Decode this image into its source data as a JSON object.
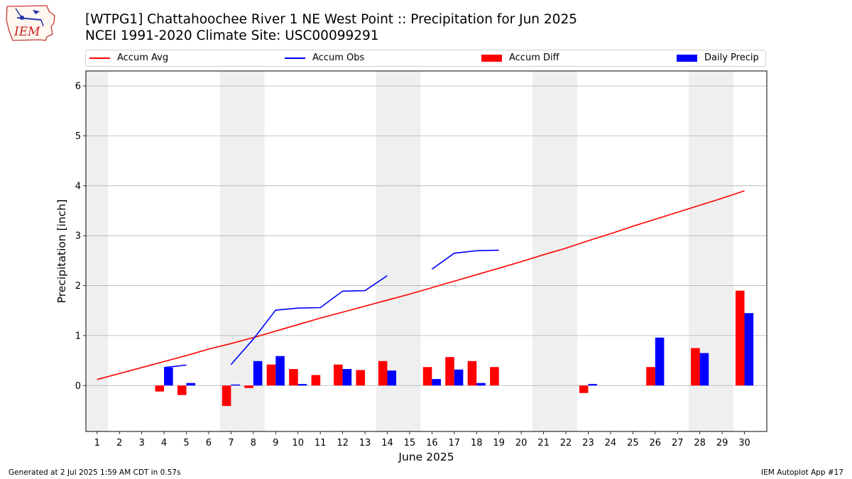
{
  "logo": {
    "text": "IEM",
    "icon": "iem-iowa-logo-icon"
  },
  "title": "[WTPG1] Chattahoochee River 1 NE West Point :: Precipitation for Jun 2025",
  "subtitle": "NCEI 1991-2020 Climate Site: USC00099291",
  "footer": {
    "left": "Generated at 2 Jul 2025 1:59 AM CDT in 0.57s",
    "right": "IEM Autoplot App #17"
  },
  "colors": {
    "accum_avg": "#ff0000",
    "accum_obs": "#0000ff",
    "accum_diff": "#ff0000",
    "daily_precip": "#0000ff",
    "weekend_band": "#efefef",
    "grid": "#b0b0b0"
  },
  "chart_data": {
    "type": "bar",
    "xlabel": "June 2025",
    "ylabel": "Precipitation [inch]",
    "xlim": [
      0.5,
      31.0
    ],
    "ylim": [
      -0.92,
      6.3
    ],
    "yticks": [
      0,
      1,
      2,
      3,
      4,
      5,
      6
    ],
    "days": [
      1,
      2,
      3,
      4,
      5,
      6,
      7,
      8,
      9,
      10,
      11,
      12,
      13,
      14,
      15,
      16,
      17,
      18,
      19,
      20,
      21,
      22,
      23,
      24,
      25,
      26,
      27,
      28,
      29,
      30
    ],
    "weekend_days": [
      1,
      7,
      8,
      14,
      15,
      21,
      22,
      28,
      29
    ],
    "grid": "y",
    "legend_position": "top",
    "legend": [
      "Accum Avg",
      "Accum Obs",
      "Accum Diff",
      "Daily Precip"
    ],
    "series": [
      {
        "name": "Accum Avg",
        "kind": "line",
        "color": "#ff0000",
        "values": [
          0.12,
          0.24,
          0.36,
          0.48,
          0.6,
          0.73,
          0.84,
          0.96,
          1.09,
          1.22,
          1.35,
          1.47,
          1.59,
          1.71,
          1.83,
          1.96,
          2.09,
          2.22,
          2.35,
          2.48,
          2.62,
          2.75,
          2.9,
          3.04,
          3.19,
          3.33,
          3.47,
          3.61,
          3.75,
          3.9
        ]
      },
      {
        "name": "Accum Obs",
        "kind": "line",
        "color": "#0000ff",
        "values": [
          null,
          null,
          null,
          0.36,
          0.41,
          null,
          0.42,
          0.93,
          1.51,
          1.55,
          1.56,
          1.89,
          1.9,
          2.2,
          null,
          2.33,
          2.65,
          2.7,
          2.71,
          null,
          null,
          null,
          null,
          null,
          null,
          null,
          null,
          null,
          null,
          null
        ]
      },
      {
        "name": "Accum Diff",
        "kind": "bar",
        "color": "#ff0000",
        "values": [
          null,
          null,
          null,
          -0.12,
          -0.19,
          null,
          -0.41,
          -0.05,
          0.42,
          0.33,
          0.21,
          0.42,
          0.31,
          0.49,
          null,
          0.37,
          0.57,
          0.49,
          0.37,
          null,
          null,
          null,
          -0.15,
          null,
          null,
          0.37,
          null,
          0.75,
          null,
          1.9
        ]
      },
      {
        "name": "Daily Precip",
        "kind": "bar",
        "color": "#0000ff",
        "values": [
          null,
          null,
          null,
          0.36,
          0.05,
          null,
          0.02,
          0.49,
          0.59,
          0.03,
          null,
          0.33,
          null,
          0.3,
          null,
          0.13,
          0.32,
          0.05,
          null,
          null,
          null,
          null,
          0.03,
          null,
          null,
          0.96,
          null,
          0.65,
          null,
          1.45
        ]
      }
    ]
  }
}
